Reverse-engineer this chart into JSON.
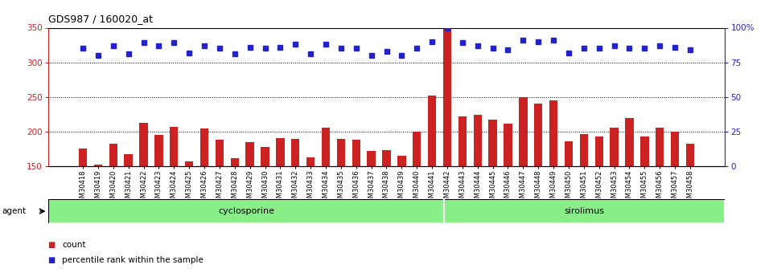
{
  "title": "GDS987 / 160020_at",
  "categories": [
    "GSM30418",
    "GSM30419",
    "GSM30420",
    "GSM30421",
    "GSM30422",
    "GSM30423",
    "GSM30424",
    "GSM30425",
    "GSM30426",
    "GSM30427",
    "GSM30428",
    "GSM30429",
    "GSM30430",
    "GSM30431",
    "GSM30432",
    "GSM30433",
    "GSM30434",
    "GSM30435",
    "GSM30436",
    "GSM30437",
    "GSM30438",
    "GSM30439",
    "GSM30440",
    "GSM30441",
    "GSM30442",
    "GSM30443",
    "GSM30444",
    "GSM30445",
    "GSM30446",
    "GSM30447",
    "GSM30448",
    "GSM30449",
    "GSM30450",
    "GSM30451",
    "GSM30452",
    "GSM30453",
    "GSM30454",
    "GSM30455",
    "GSM30456",
    "GSM30457",
    "GSM30458"
  ],
  "bar_values": [
    175,
    152,
    182,
    167,
    213,
    195,
    207,
    157,
    205,
    188,
    162,
    185,
    178,
    191,
    190,
    163,
    206,
    189,
    188,
    172,
    173,
    165,
    200,
    252,
    348,
    222,
    224,
    217,
    212,
    250,
    240,
    245,
    186,
    196,
    193,
    206,
    220,
    193,
    206,
    200,
    183
  ],
  "percentile_values_pct": [
    85,
    80,
    87,
    81,
    89,
    87,
    89,
    82,
    87,
    85,
    81,
    86,
    85,
    86,
    88,
    81,
    88,
    85,
    85,
    80,
    83,
    80,
    85,
    90,
    100,
    89,
    87,
    85,
    84,
    91,
    90,
    91,
    82,
    85,
    85,
    87,
    85,
    85,
    87,
    86,
    84
  ],
  "bar_color": "#cc2222",
  "percentile_color": "#2222cc",
  "ylim_left": [
    150,
    350
  ],
  "ylim_right": [
    0,
    100
  ],
  "yticks_left": [
    150,
    200,
    250,
    300,
    350
  ],
  "yticks_right": [
    0,
    25,
    50,
    75,
    100
  ],
  "group1_label": "cyclosporine",
  "group2_label": "sirolimus",
  "group1_count": 24,
  "agent_label": "agent",
  "legend_bar_label": "count",
  "legend_dot_label": "percentile rank within the sample",
  "group_bg_color": "#88ee88",
  "plot_bg_color": "#ffffff",
  "bar_width": 0.55,
  "title_fontsize": 9,
  "tick_fontsize": 6,
  "ylabel_fontsize": 7.5
}
